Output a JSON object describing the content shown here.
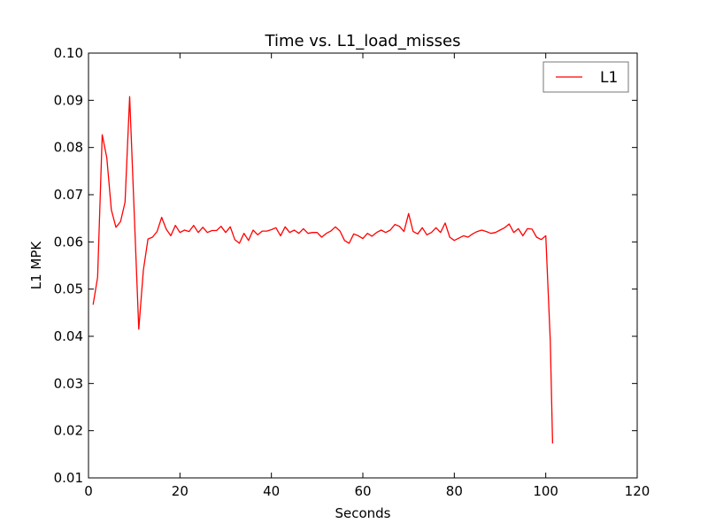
{
  "chart_data": {
    "type": "line",
    "title": "Time vs. L1_load_misses",
    "xlabel": "Seconds",
    "ylabel": "L1 MPK",
    "xlim": [
      0,
      120
    ],
    "ylim": [
      0.01,
      0.1
    ],
    "x_ticks": [
      0,
      20,
      40,
      60,
      80,
      100,
      120
    ],
    "y_ticks": [
      0.01,
      0.02,
      0.03,
      0.04,
      0.05,
      0.06,
      0.07,
      0.08,
      0.09,
      0.1
    ],
    "x_tick_labels": [
      "0",
      "20",
      "40",
      "60",
      "80",
      "100",
      "120"
    ],
    "y_tick_labels": [
      "0.01",
      "0.02",
      "0.03",
      "0.04",
      "0.05",
      "0.06",
      "0.07",
      "0.08",
      "0.09",
      "0.10"
    ],
    "grid": false,
    "legend_position": "top-right",
    "series": [
      {
        "name": "L1",
        "color": "#ff0000",
        "x": [
          1,
          2,
          3,
          4,
          5,
          6,
          7,
          8,
          9,
          10,
          11,
          12,
          13,
          14,
          15,
          16,
          17,
          18,
          19,
          20,
          21,
          22,
          23,
          24,
          25,
          26,
          27,
          28,
          29,
          30,
          31,
          32,
          33,
          34,
          35,
          36,
          37,
          38,
          39,
          40,
          41,
          42,
          43,
          44,
          45,
          46,
          47,
          48,
          49,
          50,
          51,
          52,
          53,
          54,
          55,
          56,
          57,
          58,
          59,
          60,
          61,
          62,
          63,
          64,
          65,
          66,
          67,
          68,
          69,
          70,
          71,
          72,
          73,
          74,
          75,
          76,
          77,
          78,
          79,
          80,
          81,
          82,
          83,
          84,
          85,
          86,
          87,
          88,
          89,
          90,
          91,
          92,
          93,
          94,
          95,
          96,
          97,
          98,
          99,
          100,
          101,
          101.5
        ],
        "y": [
          0.0467,
          0.0525,
          0.0827,
          0.0778,
          0.0668,
          0.0631,
          0.0643,
          0.0684,
          0.0908,
          0.066,
          0.0415,
          0.054,
          0.0606,
          0.061,
          0.0622,
          0.0652,
          0.0627,
          0.0613,
          0.0635,
          0.062,
          0.0625,
          0.0622,
          0.0635,
          0.062,
          0.0631,
          0.062,
          0.0624,
          0.0624,
          0.0633,
          0.062,
          0.0632,
          0.0605,
          0.0597,
          0.0618,
          0.0603,
          0.0625,
          0.0615,
          0.0623,
          0.0623,
          0.0626,
          0.063,
          0.0613,
          0.0632,
          0.062,
          0.0625,
          0.0618,
          0.0628,
          0.0618,
          0.062,
          0.062,
          0.061,
          0.0618,
          0.0623,
          0.0632,
          0.0623,
          0.0603,
          0.0597,
          0.0617,
          0.0613,
          0.0607,
          0.0618,
          0.0612,
          0.062,
          0.0625,
          0.062,
          0.0625,
          0.0637,
          0.0633,
          0.0622,
          0.066,
          0.0622,
          0.0617,
          0.063,
          0.0615,
          0.062,
          0.063,
          0.062,
          0.064,
          0.061,
          0.0603,
          0.0608,
          0.0613,
          0.061,
          0.0617,
          0.0622,
          0.0625,
          0.0622,
          0.0618,
          0.062,
          0.0625,
          0.063,
          0.0638,
          0.062,
          0.0628,
          0.0613,
          0.0628,
          0.0627,
          0.061,
          0.0605,
          0.0613,
          0.039,
          0.0173
        ]
      }
    ]
  }
}
